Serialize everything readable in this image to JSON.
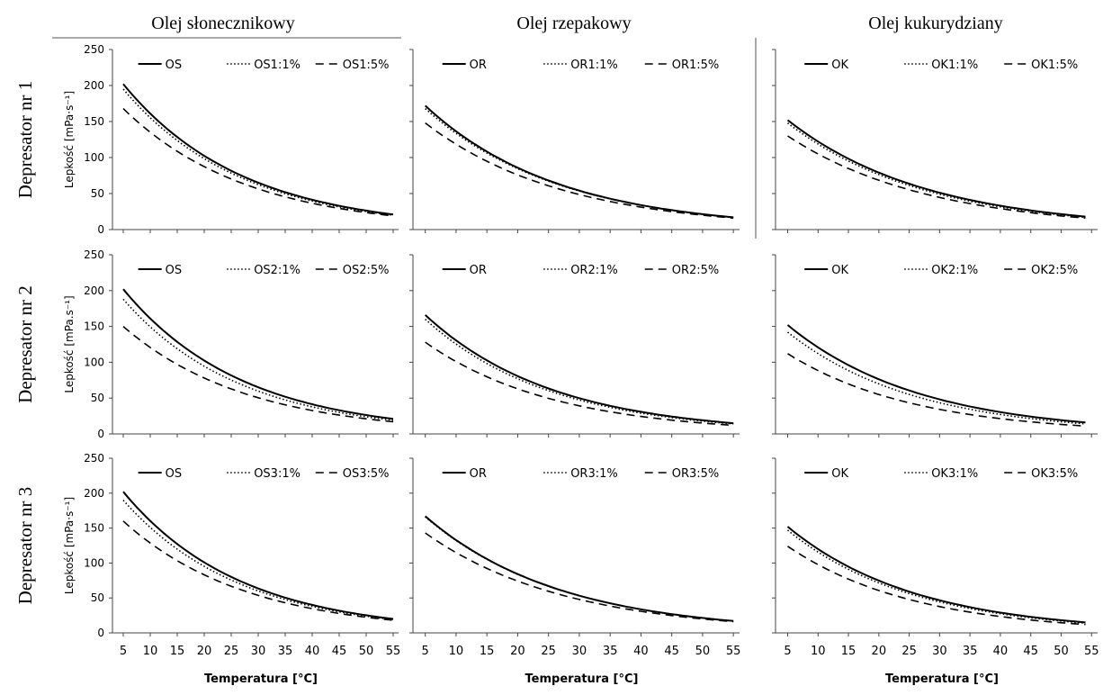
{
  "chart_data": {
    "type": "line",
    "col_titles": [
      "Olej słonecznikowy",
      "Olej rzepakowy",
      "Olej kukurydziany"
    ],
    "row_titles": [
      "Depresator nr 1",
      "Depresator nr 2",
      "Depresator nr 3"
    ],
    "xlabel": "Temperatura [°C]",
    "x_ticks": [
      5,
      10,
      15,
      20,
      25,
      30,
      35,
      40,
      45,
      50,
      55
    ],
    "y_ticks": [
      0,
      50,
      100,
      150,
      200,
      250
    ],
    "ylabel_row1": "Lepkość [mPa·s⁻¹]",
    "ylabel_row2": "Lepkość [mPa.s⁻¹]",
    "ylabel_row3": "Lepkość [mPa·s⁻¹]",
    "xlim": [
      3,
      56
    ],
    "ylim": [
      0,
      250
    ],
    "grid": false,
    "legend_position": "top",
    "panels": [
      {
        "row": 0,
        "col": 0,
        "show_ylabel": true,
        "show_yticklabels": true,
        "show_xticks": false,
        "series": [
          {
            "name": "OS",
            "style": "solid",
            "x": [
              5,
              55
            ],
            "y": [
              202,
              21
            ]
          },
          {
            "name": "OS1:1%",
            "style": "dotted",
            "x": [
              5,
              55
            ],
            "y": [
              195,
              20
            ]
          },
          {
            "name": "OS1:5%",
            "style": "dashed",
            "x": [
              5,
              55
            ],
            "y": [
              168,
              19
            ]
          }
        ]
      },
      {
        "row": 0,
        "col": 1,
        "show_ylabel": false,
        "show_yticklabels": false,
        "show_xticks": false,
        "series": [
          {
            "name": "OR",
            "style": "solid",
            "x": [
              5,
              55
            ],
            "y": [
              172,
              17
            ]
          },
          {
            "name": "OR1:1%",
            "style": "dotted",
            "x": [
              5,
              55
            ],
            "y": [
              168,
              17
            ]
          },
          {
            "name": "OR1:5%",
            "style": "dashed",
            "x": [
              5,
              55
            ],
            "y": [
              148,
              16
            ]
          }
        ]
      },
      {
        "row": 0,
        "col": 2,
        "show_ylabel": false,
        "show_yticklabels": false,
        "show_xticks": false,
        "series": [
          {
            "name": "OK",
            "style": "solid",
            "x": [
              5,
              54
            ],
            "y": [
              152,
              18
            ]
          },
          {
            "name": "OK1:1%",
            "style": "dotted",
            "x": [
              5,
              54
            ],
            "y": [
              148,
              17
            ]
          },
          {
            "name": "OK1:5%",
            "style": "dashed",
            "x": [
              5,
              54
            ],
            "y": [
              130,
              16
            ]
          }
        ]
      },
      {
        "row": 1,
        "col": 0,
        "show_ylabel": true,
        "show_yticklabels": true,
        "show_xticks": false,
        "series": [
          {
            "name": "OS",
            "style": "solid",
            "x": [
              5,
              55
            ],
            "y": [
              202,
              21
            ]
          },
          {
            "name": "OS2:1%",
            "style": "dotted",
            "x": [
              5,
              55
            ],
            "y": [
              188,
              19
            ]
          },
          {
            "name": "OS2:5%",
            "style": "dashed",
            "x": [
              5,
              55
            ],
            "y": [
              150,
              17
            ]
          }
        ]
      },
      {
        "row": 1,
        "col": 1,
        "show_ylabel": false,
        "show_yticklabels": false,
        "show_xticks": false,
        "series": [
          {
            "name": "OR",
            "style": "solid",
            "x": [
              5,
              55
            ],
            "y": [
              166,
              15
            ]
          },
          {
            "name": "OR2:1%",
            "style": "dotted",
            "x": [
              5,
              55
            ],
            "y": [
              160,
              14
            ]
          },
          {
            "name": "OR2:5%",
            "style": "dashed",
            "x": [
              5,
              55
            ],
            "y": [
              128,
              12
            ]
          }
        ]
      },
      {
        "row": 1,
        "col": 2,
        "show_ylabel": false,
        "show_yticklabels": false,
        "show_xticks": false,
        "series": [
          {
            "name": "OK",
            "style": "solid",
            "x": [
              5,
              54
            ],
            "y": [
              152,
              16
            ]
          },
          {
            "name": "OK2:1%",
            "style": "dotted",
            "x": [
              5,
              54
            ],
            "y": [
              142,
              14
            ]
          },
          {
            "name": "OK2:5%",
            "style": "dashed",
            "x": [
              5,
              54
            ],
            "y": [
              112,
              11
            ]
          }
        ]
      },
      {
        "row": 2,
        "col": 0,
        "show_ylabel": true,
        "show_yticklabels": true,
        "show_xticks": true,
        "series": [
          {
            "name": "OS",
            "style": "solid",
            "x": [
              5,
              55
            ],
            "y": [
              202,
              20
            ]
          },
          {
            "name": "OS3:1%",
            "style": "dotted",
            "x": [
              5,
              55
            ],
            "y": [
              190,
              19
            ]
          },
          {
            "name": "OS3:5%",
            "style": "dashed",
            "x": [
              5,
              55
            ],
            "y": [
              160,
              18
            ]
          }
        ]
      },
      {
        "row": 2,
        "col": 1,
        "show_ylabel": false,
        "show_yticklabels": false,
        "show_xticks": true,
        "series": [
          {
            "name": "OR",
            "style": "solid",
            "x": [
              5,
              55
            ],
            "y": [
              167,
              17
            ]
          },
          {
            "name": "OR3:1%",
            "style": "dotted",
            "x": [
              5,
              55
            ],
            "y": [
              166,
              17
            ]
          },
          {
            "name": "OR3:5%",
            "style": "dashed",
            "x": [
              5,
              55
            ],
            "y": [
              143,
              16
            ]
          }
        ]
      },
      {
        "row": 2,
        "col": 2,
        "show_ylabel": false,
        "show_yticklabels": false,
        "show_xticks": true,
        "series": [
          {
            "name": "OK",
            "style": "solid",
            "x": [
              5,
              54
            ],
            "y": [
              152,
              15
            ]
          },
          {
            "name": "OK3:1%",
            "style": "dotted",
            "x": [
              5,
              54
            ],
            "y": [
              147,
              14
            ]
          },
          {
            "name": "OK3:5%",
            "style": "dashed",
            "x": [
              5,
              54
            ],
            "y": [
              124,
              12
            ]
          }
        ]
      }
    ]
  }
}
